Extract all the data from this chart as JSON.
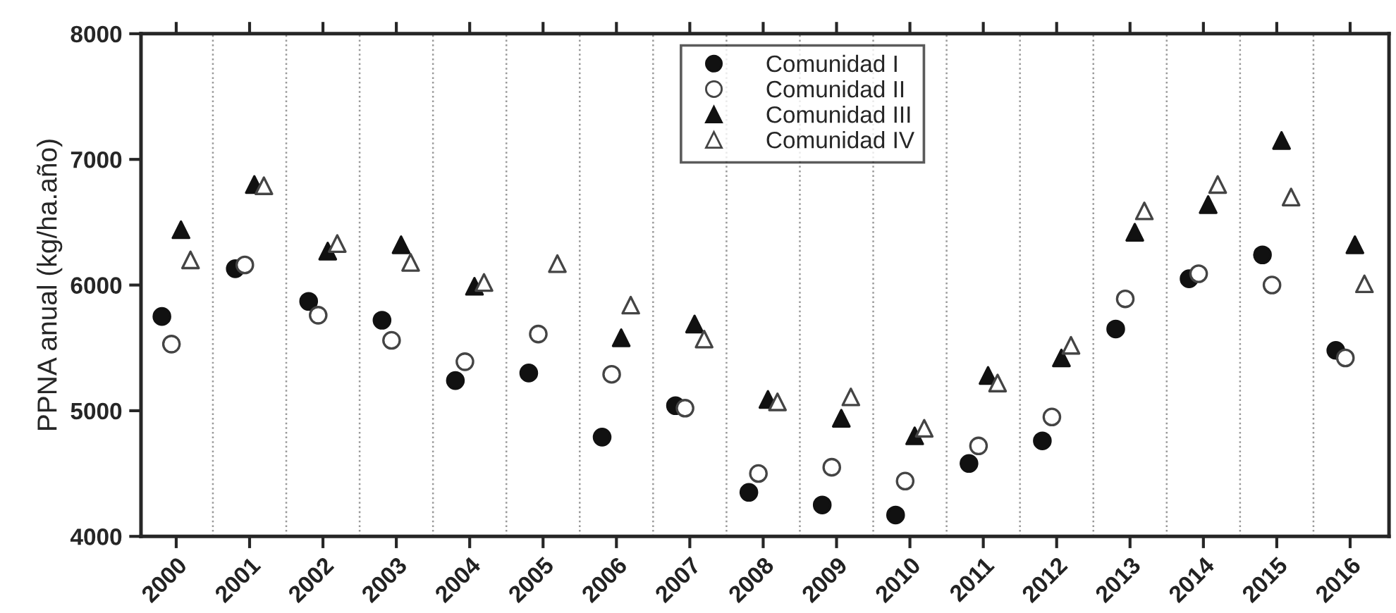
{
  "chart_data": {
    "type": "scatter",
    "ylabel": "PPNA anual (kg/ha.año)",
    "categories": [
      "2000",
      "2001",
      "2002",
      "2003",
      "2004",
      "2005",
      "2006",
      "2007",
      "2008",
      "2009",
      "2010",
      "2011",
      "2012",
      "2013",
      "2014",
      "2015",
      "2016"
    ],
    "series": [
      {
        "name": "Comunidad I",
        "color": "#111111",
        "marker": "circle",
        "values": [
          5750,
          6130,
          5870,
          5720,
          5240,
          5300,
          4790,
          5040,
          4350,
          4250,
          4170,
          4580,
          4760,
          5650,
          6050,
          6240,
          5480
        ]
      },
      {
        "name": "Comunidad II",
        "color": "#444444",
        "marker": "circle",
        "values": [
          5530,
          6160,
          5760,
          5560,
          5390,
          5610,
          5290,
          5020,
          4500,
          4550,
          4440,
          4720,
          4950,
          5890,
          6090,
          6000,
          5420
        ]
      },
      {
        "name": "Comunidad III",
        "color": "#111111",
        "marker": "triangle",
        "values": [
          6440,
          6800,
          6270,
          6320,
          5990,
          null,
          5580,
          5690,
          5090,
          4940,
          4800,
          5280,
          5420,
          6420,
          6640,
          7150,
          6320
        ]
      },
      {
        "name": "Comunidad IV",
        "color": "#444444",
        "marker": "triangle",
        "values": [
          6200,
          6790,
          6330,
          6180,
          6020,
          6170,
          5840,
          5570,
          5070,
          5110,
          4860,
          5220,
          5520,
          6590,
          6800,
          6700,
          6010
        ]
      }
    ],
    "ylim": [
      4000,
      8000
    ],
    "yticks": [
      4000,
      5000,
      6000,
      7000,
      8000
    ],
    "grid": "x",
    "legend": "top"
  }
}
